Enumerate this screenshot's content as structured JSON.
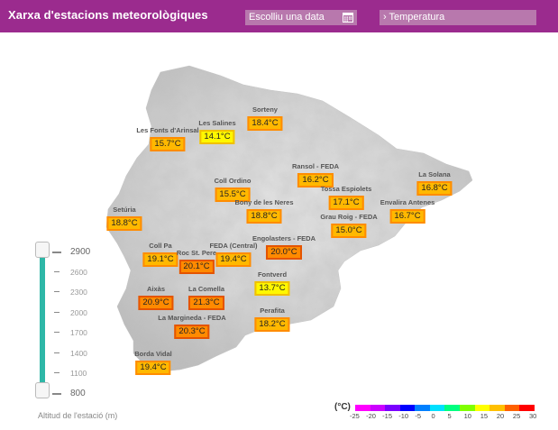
{
  "header": {
    "title": "Xarxa d'estacions meteorològiques",
    "date_placeholder": "Escolliu una data",
    "variable_label": "› Temperatura"
  },
  "stations": [
    {
      "name": "Sorteny",
      "value": "18.4°C",
      "level": "orange"
    },
    {
      "name": "Les Salines",
      "value": "14.1°C",
      "level": "yellow"
    },
    {
      "name": "Les Fonts d'Arinsal",
      "value": "15.7°C",
      "level": "orange"
    },
    {
      "name": "Ransol - FEDA",
      "value": "16.2°C",
      "level": "orange"
    },
    {
      "name": "La Solana",
      "value": "16.8°C",
      "level": "orange"
    },
    {
      "name": "Coll Ordino",
      "value": "15.5°C",
      "level": "orange"
    },
    {
      "name": "Tossa Espiolets",
      "value": "17.1°C",
      "level": "orange"
    },
    {
      "name": "Envalira Antenes",
      "value": "16.7°C",
      "level": "orange"
    },
    {
      "name": "Setúria",
      "value": "18.8°C",
      "level": "orange"
    },
    {
      "name": "Bony de les Neres",
      "value": "18.8°C",
      "level": "orange"
    },
    {
      "name": "Grau Roig - FEDA",
      "value": "15.0°C",
      "level": "orange"
    },
    {
      "name": "Engolasters - FEDA",
      "value": "20.0°C",
      "level": "dark"
    },
    {
      "name": "Coll Pa",
      "value": "19.1°C",
      "level": "orange"
    },
    {
      "name": "Roc St. Pere",
      "value": "20.1°C",
      "level": "dark"
    },
    {
      "name": "FEDA (Central)",
      "value": "19.4°C",
      "level": "orange"
    },
    {
      "name": "Fontverd",
      "value": "13.7°C",
      "level": "yellow"
    },
    {
      "name": "Aixàs",
      "value": "20.9°C",
      "level": "dark"
    },
    {
      "name": "La Comella",
      "value": "21.3°C",
      "level": "dark"
    },
    {
      "name": "Perafita",
      "value": "18.2°C",
      "level": "orange"
    },
    {
      "name": "La Margineda - FEDA",
      "value": "20.3°C",
      "level": "dark"
    },
    {
      "name": "Borda Vidal",
      "value": "19.4°C",
      "level": "orange"
    }
  ],
  "altitude_slider": {
    "ticks": [
      "2900",
      "2600",
      "2300",
      "2000",
      "1700",
      "1400",
      "1100",
      "800"
    ],
    "min": 800,
    "max": 2900,
    "selected_min": 800,
    "selected_max": 2900,
    "caption": "Altitud de l'estació (m)"
  },
  "legend": {
    "unit": "(°C)",
    "labels": [
      "-25",
      "-20",
      "-15",
      "-10",
      "-5",
      "0",
      "5",
      "10",
      "15",
      "20",
      "25",
      "30"
    ],
    "colors": [
      "#ff00ff",
      "#cc00ff",
      "#7a00ff",
      "#0000ff",
      "#0080ff",
      "#00e0ff",
      "#00ff80",
      "#80ff00",
      "#ffff00",
      "#ffc000",
      "#ff6000",
      "#ff0000"
    ]
  }
}
